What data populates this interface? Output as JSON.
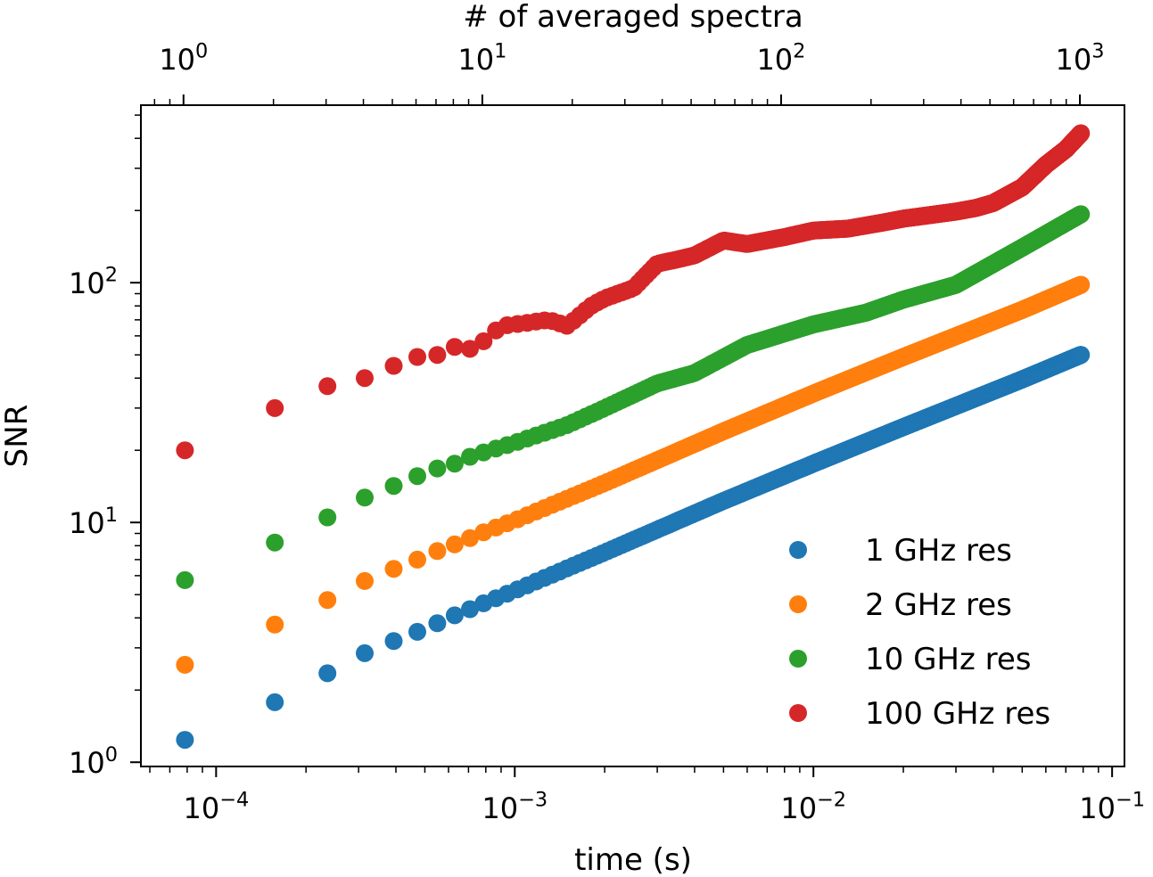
{
  "chart_data": {
    "type": "scatter",
    "xscale": "log",
    "yscale": "log",
    "xlabel": "time (s)",
    "ylabel": "SNR",
    "top_xlabel": "# of averaged spectra",
    "xlim": [
      5.6e-05,
      0.11
    ],
    "ylim": [
      0.96,
      550
    ],
    "top_xlim": [
      0.72,
      1410
    ],
    "x_ticks": [
      {
        "value": 0.0001,
        "base": "10",
        "exp": "−4"
      },
      {
        "value": 0.001,
        "base": "10",
        "exp": "−3"
      },
      {
        "value": 0.01,
        "base": "10",
        "exp": "−2"
      },
      {
        "value": 0.1,
        "base": "10",
        "exp": "−1"
      }
    ],
    "y_ticks": [
      {
        "value": 1,
        "base": "10",
        "exp": "0"
      },
      {
        "value": 10,
        "base": "10",
        "exp": "1"
      },
      {
        "value": 100,
        "base": "10",
        "exp": "2"
      }
    ],
    "top_ticks": [
      {
        "value": 1,
        "base": "10",
        "exp": "0"
      },
      {
        "value": 10,
        "base": "10",
        "exp": "1"
      },
      {
        "value": 100,
        "base": "10",
        "exp": "2"
      },
      {
        "value": 1000,
        "base": "10",
        "exp": "3"
      }
    ],
    "legend_position": "lower right",
    "series": [
      {
        "name": "1 GHz res",
        "color": "#1f77b4",
        "x": [
          7.864e-05,
          0.0001573,
          0.0002359,
          0.0003146,
          0.0003932,
          0.0004718,
          0.0005505,
          0.0006291,
          0.0007078,
          0.0007864,
          0.001,
          0.002,
          0.005,
          0.01,
          0.02,
          0.05,
          0.07864
        ],
        "y": [
          1.24,
          1.78,
          2.35,
          2.85,
          3.2,
          3.5,
          3.8,
          4.1,
          4.35,
          4.6,
          5.2,
          7.5,
          12.3,
          17.6,
          25,
          39.5,
          50
        ]
      },
      {
        "name": "2 GHz res",
        "color": "#ff7f0e",
        "x": [
          7.864e-05,
          0.0001573,
          0.0002359,
          0.0003146,
          0.0003932,
          0.0004718,
          0.0005505,
          0.0006291,
          0.0007078,
          0.0007864,
          0.001,
          0.002,
          0.005,
          0.01,
          0.02,
          0.05,
          0.07864
        ],
        "y": [
          2.55,
          3.75,
          4.75,
          5.7,
          6.4,
          7,
          7.6,
          8.1,
          8.6,
          9.1,
          10.2,
          14.6,
          24,
          34.5,
          49,
          77,
          98
        ]
      },
      {
        "name": "10 GHz res",
        "color": "#2ca02c",
        "x": [
          7.864e-05,
          0.0001573,
          0.0002359,
          0.0003146,
          0.0003932,
          0.0004718,
          0.0005505,
          0.0006291,
          0.0007078,
          0.0007864,
          0.001,
          0.0015,
          0.002,
          0.003,
          0.004,
          0.006,
          0.01,
          0.015,
          0.02,
          0.03,
          0.05,
          0.07864
        ],
        "y": [
          5.75,
          8.25,
          10.5,
          12.7,
          14.2,
          15.6,
          16.8,
          17.6,
          18.8,
          19.6,
          21.5,
          25.5,
          30,
          38,
          42,
          55,
          67,
          75,
          85,
          98,
          140,
          193
        ]
      },
      {
        "name": "100 GHz res",
        "color": "#d62728",
        "x": [
          7.864e-05,
          0.0001573,
          0.0002359,
          0.0003146,
          0.0003932,
          0.0004718,
          0.0005505,
          0.0006291,
          0.0007078,
          0.0007864,
          0.0009,
          0.0011,
          0.0013,
          0.0015,
          0.0018,
          0.002,
          0.0025,
          0.003,
          0.0035,
          0.004,
          0.005,
          0.006,
          0.008,
          0.01,
          0.013,
          0.017,
          0.02,
          0.025,
          0.03,
          0.035,
          0.04,
          0.05,
          0.06,
          0.07,
          0.07864
        ],
        "y": [
          20,
          30,
          37,
          40,
          45,
          49,
          50,
          54,
          53,
          57,
          66,
          68,
          70,
          66,
          80,
          86,
          95,
          120,
          125,
          130,
          150,
          145,
          155,
          165,
          168,
          178,
          185,
          192,
          198,
          205,
          215,
          250,
          310,
          360,
          420
        ]
      }
    ]
  }
}
